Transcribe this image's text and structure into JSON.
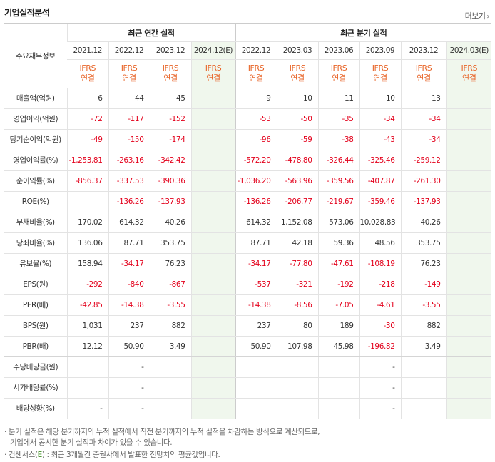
{
  "title": "기업실적분석",
  "more_label": "더보기",
  "more_icon": "chevron-right-icon",
  "header": {
    "row_label": "주요재무정보",
    "annual_group": "최근 연간 실적",
    "quarter_group": "최근 분기 실적",
    "annual_years": [
      "2021.12",
      "2022.12",
      "2023.12",
      "2024.12(E)"
    ],
    "quarter_years": [
      "2022.12",
      "2023.03",
      "2023.06",
      "2023.09",
      "2023.12",
      "2024.03(E)"
    ],
    "ifrs_top": "IFRS",
    "ifrs_bottom": "연결"
  },
  "rows": [
    {
      "label": "매출액(억원)",
      "annual": [
        "6",
        "44",
        "45",
        ""
      ],
      "quarter": [
        "9",
        "10",
        "11",
        "10",
        "13",
        ""
      ]
    },
    {
      "label": "영업이익(억원)",
      "annual": [
        "-72",
        "-117",
        "-152",
        ""
      ],
      "quarter": [
        "-53",
        "-50",
        "-35",
        "-34",
        "-34",
        ""
      ]
    },
    {
      "label": "당기순이익(억원)",
      "annual": [
        "-49",
        "-150",
        "-174",
        ""
      ],
      "quarter": [
        "-96",
        "-59",
        "-38",
        "-43",
        "-34",
        ""
      ]
    },
    {
      "label": "영업이익률(%)",
      "annual": [
        "-1,253.81",
        "-263.16",
        "-342.42",
        ""
      ],
      "quarter": [
        "-572.20",
        "-478.80",
        "-326.44",
        "-325.46",
        "-259.12",
        ""
      ]
    },
    {
      "label": "순이익률(%)",
      "annual": [
        "-856.37",
        "-337.53",
        "-390.36",
        ""
      ],
      "quarter": [
        "-1,036.20",
        "-563.96",
        "-359.56",
        "-407.87",
        "-261.30",
        ""
      ]
    },
    {
      "label": "ROE(%)",
      "annual": [
        "",
        "-136.26",
        "-137.93",
        ""
      ],
      "quarter": [
        "-136.26",
        "-206.77",
        "-219.67",
        "-359.46",
        "-137.93",
        ""
      ]
    },
    {
      "label": "부채비율(%)",
      "annual": [
        "170.02",
        "614.32",
        "40.26",
        ""
      ],
      "quarter": [
        "614.32",
        "1,152.08",
        "573.06",
        "10,028.83",
        "40.26",
        ""
      ]
    },
    {
      "label": "당좌비율(%)",
      "annual": [
        "136.06",
        "87.71",
        "353.75",
        ""
      ],
      "quarter": [
        "87.71",
        "42.18",
        "59.36",
        "48.56",
        "353.75",
        ""
      ]
    },
    {
      "label": "유보율(%)",
      "annual": [
        "158.94",
        "-34.17",
        "76.23",
        ""
      ],
      "quarter": [
        "-34.17",
        "-77.80",
        "-47.61",
        "-108.19",
        "76.23",
        ""
      ]
    },
    {
      "label": "EPS(원)",
      "annual": [
        "-292",
        "-840",
        "-867",
        ""
      ],
      "quarter": [
        "-537",
        "-321",
        "-192",
        "-218",
        "-149",
        ""
      ]
    },
    {
      "label": "PER(배)",
      "annual": [
        "-42.85",
        "-14.38",
        "-3.55",
        ""
      ],
      "quarter": [
        "-14.38",
        "-8.56",
        "-7.05",
        "-4.61",
        "-3.55",
        ""
      ]
    },
    {
      "label": "BPS(원)",
      "annual": [
        "1,031",
        "237",
        "882",
        ""
      ],
      "quarter": [
        "237",
        "80",
        "189",
        "-30",
        "882",
        ""
      ]
    },
    {
      "label": "PBR(배)",
      "annual": [
        "12.12",
        "50.90",
        "3.49",
        ""
      ],
      "quarter": [
        "50.90",
        "107.98",
        "45.98",
        "-196.82",
        "3.49",
        ""
      ]
    },
    {
      "label": "주당배당금(원)",
      "annual": [
        "",
        "-",
        "",
        ""
      ],
      "quarter": [
        "",
        "",
        "",
        "-",
        "",
        ""
      ]
    },
    {
      "label": "시가배당률(%)",
      "annual": [
        "",
        "-",
        "",
        ""
      ],
      "quarter": [
        "",
        "",
        "",
        "-",
        "",
        ""
      ]
    },
    {
      "label": "배당성향(%)",
      "annual": [
        "-",
        "-",
        "",
        ""
      ],
      "quarter": [
        "",
        "",
        "",
        "-",
        "",
        ""
      ]
    }
  ],
  "notes": {
    "note1_line1": "· 분기 실적은 해당 분기까지의 누적 실적에서 직전 분기까지의 누적 실적을 차감하는 방식으로 계산되므로,",
    "note1_line2": "기업에서 공시한 분기 실적과 차이가 있을 수 있습니다.",
    "note2_pre": "· 컨센서스(",
    "note2_e": "E",
    "note2_post": ") : 최근 3개월간 증권사에서 발표한 전망치의 평균값입니다."
  }
}
